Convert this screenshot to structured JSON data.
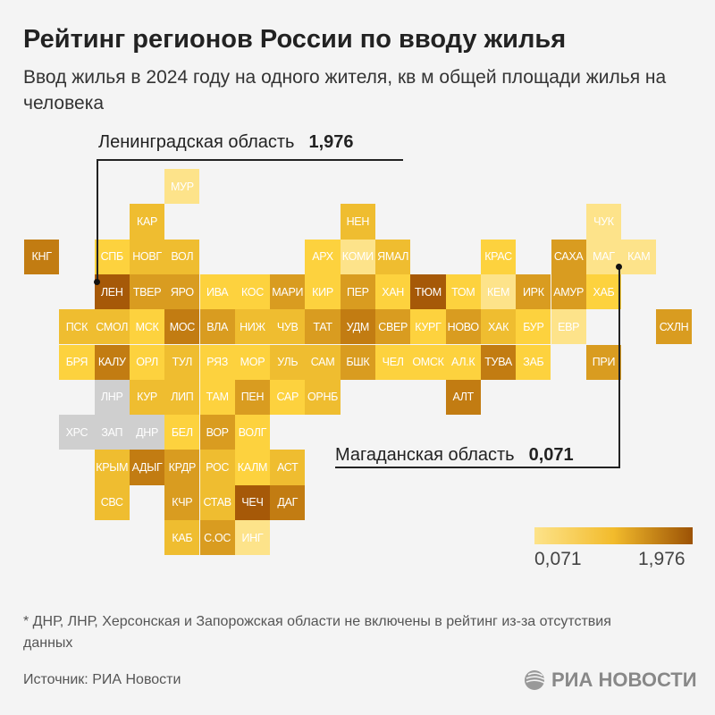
{
  "header": {
    "title": "Рейтинг регионов России по вводу жилья",
    "subtitle": "Ввод жилья в 2024 году на одного жителя, кв м общей площади жилья на человека"
  },
  "palette": {
    "1": "#fde38a",
    "2": "#fdd23e",
    "3": "#efbd30",
    "4": "#d99c20",
    "5": "#c27c12",
    "6": "#a65908",
    "na": "#cfcfcf"
  },
  "map": {
    "rows": [
      [
        null,
        null,
        null,
        null,
        {
          "label": "МУР",
          "shade": "1"
        }
      ],
      [
        null,
        null,
        null,
        {
          "label": "КАР",
          "shade": "3"
        },
        null,
        null,
        null,
        null,
        null,
        {
          "label": "НЕН",
          "shade": "3"
        },
        null,
        null,
        null,
        null,
        null,
        null,
        {
          "label": "ЧУК",
          "shade": "1"
        }
      ],
      [
        {
          "label": "КНГ",
          "shade": "5"
        },
        null,
        {
          "label": "СПБ",
          "shade": "2"
        },
        {
          "label": "НОВГ",
          "shade": "3"
        },
        {
          "label": "ВОЛ",
          "shade": "3"
        },
        null,
        null,
        null,
        {
          "label": "АРХ",
          "shade": "2"
        },
        {
          "label": "КОМИ",
          "shade": "1"
        },
        {
          "label": "ЯМАЛ",
          "shade": "3"
        },
        null,
        null,
        {
          "label": "КРАС",
          "shade": "2"
        },
        null,
        {
          "label": "САХА",
          "shade": "4"
        },
        {
          "label": "МАГ",
          "shade": "1"
        },
        {
          "label": "КАМ",
          "shade": "1"
        }
      ],
      [
        null,
        null,
        {
          "label": "ЛЕН",
          "shade": "6"
        },
        {
          "label": "ТВЕР",
          "shade": "4"
        },
        {
          "label": "ЯРО",
          "shade": "4"
        },
        {
          "label": "ИВА",
          "shade": "2"
        },
        {
          "label": "КОС",
          "shade": "2"
        },
        {
          "label": "МАРИ",
          "shade": "4"
        },
        {
          "label": "КИР",
          "shade": "2"
        },
        {
          "label": "ПЕР",
          "shade": "4"
        },
        {
          "label": "ХАН",
          "shade": "2"
        },
        {
          "label": "ТЮМ",
          "shade": "6"
        },
        {
          "label": "ТОМ",
          "shade": "2"
        },
        {
          "label": "КЕМ",
          "shade": "1"
        },
        {
          "label": "ИРК",
          "shade": "4"
        },
        {
          "label": "АМУР",
          "shade": "4"
        },
        {
          "label": "ХАБ",
          "shade": "2"
        }
      ],
      [
        null,
        {
          "label": "ПСК",
          "shade": "3"
        },
        {
          "label": "СМОЛ",
          "shade": "3"
        },
        {
          "label": "МСК",
          "shade": "2"
        },
        {
          "label": "МОС",
          "shade": "5"
        },
        {
          "label": "ВЛА",
          "shade": "4"
        },
        {
          "label": "НИЖ",
          "shade": "3"
        },
        {
          "label": "ЧУВ",
          "shade": "3"
        },
        {
          "label": "ТАТ",
          "shade": "4"
        },
        {
          "label": "УДМ",
          "shade": "5"
        },
        {
          "label": "СВЕР",
          "shade": "4"
        },
        {
          "label": "КУРГ",
          "shade": "2"
        },
        {
          "label": "НОВО",
          "shade": "4"
        },
        {
          "label": "ХАК",
          "shade": "3"
        },
        {
          "label": "БУР",
          "shade": "2"
        },
        {
          "label": "ЕВР",
          "shade": "1"
        },
        null,
        null,
        {
          "label": "СХЛН",
          "shade": "4"
        }
      ],
      [
        null,
        {
          "label": "БРЯ",
          "shade": "2"
        },
        {
          "label": "КАЛУ",
          "shade": "5"
        },
        {
          "label": "ОРЛ",
          "shade": "2"
        },
        {
          "label": "ТУЛ",
          "shade": "3"
        },
        {
          "label": "РЯЗ",
          "shade": "2"
        },
        {
          "label": "МОР",
          "shade": "2"
        },
        {
          "label": "УЛЬ",
          "shade": "3"
        },
        {
          "label": "САМ",
          "shade": "3"
        },
        {
          "label": "БШК",
          "shade": "4"
        },
        {
          "label": "ЧЕЛ",
          "shade": "2"
        },
        {
          "label": "ОМСК",
          "shade": "2"
        },
        {
          "label": "АЛ.К",
          "shade": "2"
        },
        {
          "label": "ТУВА",
          "shade": "5"
        },
        {
          "label": "ЗАБ",
          "shade": "2"
        },
        null,
        {
          "label": "ПРИ",
          "shade": "4"
        }
      ],
      [
        null,
        null,
        {
          "label": "ЛНР",
          "shade": "na"
        },
        {
          "label": "КУР",
          "shade": "3"
        },
        {
          "label": "ЛИП",
          "shade": "3"
        },
        {
          "label": "ТАМ",
          "shade": "2"
        },
        {
          "label": "ПЕН",
          "shade": "4"
        },
        {
          "label": "САР",
          "shade": "2"
        },
        {
          "label": "ОРНБ",
          "shade": "3"
        },
        null,
        null,
        null,
        {
          "label": "АЛТ",
          "shade": "5"
        }
      ],
      [
        null,
        {
          "label": "ХРС",
          "shade": "na"
        },
        {
          "label": "ЗАП",
          "shade": "na"
        },
        {
          "label": "ДНР",
          "shade": "na"
        },
        {
          "label": "БЕЛ",
          "shade": "2"
        },
        {
          "label": "ВОР",
          "shade": "4"
        },
        {
          "label": "ВОЛГ",
          "shade": "2"
        }
      ],
      [
        null,
        null,
        {
          "label": "КРЫМ",
          "shade": "3"
        },
        {
          "label": "АДЫГ",
          "shade": "5"
        },
        {
          "label": "КРДР",
          "shade": "4"
        },
        {
          "label": "РОС",
          "shade": "3"
        },
        {
          "label": "КАЛМ",
          "shade": "2"
        },
        {
          "label": "АСТ",
          "shade": "3"
        }
      ],
      [
        null,
        null,
        {
          "label": "СВС",
          "shade": "3"
        },
        null,
        {
          "label": "КЧР",
          "shade": "4"
        },
        {
          "label": "СТАВ",
          "shade": "3"
        },
        {
          "label": "ЧЕЧ",
          "shade": "6"
        },
        {
          "label": "ДАГ",
          "shade": "5"
        }
      ],
      [
        null,
        null,
        null,
        null,
        {
          "label": "КАБ",
          "shade": "3"
        },
        {
          "label": "С.ОС",
          "shade": "4"
        },
        {
          "label": "ИНГ",
          "shade": "1"
        }
      ]
    ]
  },
  "callouts": {
    "max": {
      "region": "Ленинградская область",
      "value": "1,976"
    },
    "min": {
      "region": "Магаданская область",
      "value": "0,071"
    }
  },
  "legend": {
    "min_label": "0,071",
    "max_label": "1,976",
    "min_color": "#fde38a",
    "mid_color": "#f2bb2c",
    "max_color": "#9c5205"
  },
  "footer": {
    "note": "* ДНР, ЛНР, Херсонская и Запорожская области не включены в рейтинг из-за отсутствия данных",
    "source": "Источник: РИА Новости",
    "logo_text": "РИА НОВОСТИ"
  }
}
